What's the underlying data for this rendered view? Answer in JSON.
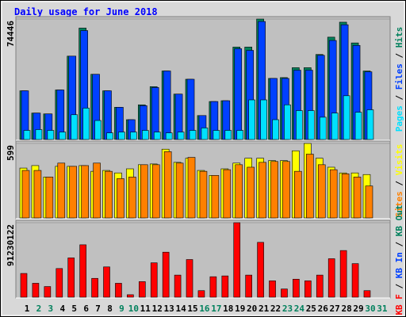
{
  "chart_data": [
    {
      "type": "bar",
      "title": "Daily usage for June 2018",
      "ylim": [
        0,
        74446
      ],
      "yticks": [
        74446
      ],
      "legend_separator": " / ",
      "series": [
        {
          "name": "Hits",
          "color": "#00805c",
          "values": [
            30090,
            16320,
            15810,
            30600,
            51510,
            68850,
            40290,
            30090,
            19890,
            12240,
            21420,
            32640,
            42330,
            28050,
            37230,
            14790,
            23460,
            23970,
            57120,
            57120,
            74446,
            37740,
            38250,
            44370,
            44370,
            52530,
            63240,
            72500,
            59670,
            42330,
            null
          ]
        },
        {
          "name": "Files",
          "color": "#0040ff",
          "values": [
            30090,
            16320,
            15810,
            30600,
            51510,
            67320,
            40290,
            30090,
            19890,
            12240,
            20910,
            32130,
            42330,
            28050,
            37230,
            14790,
            23460,
            23970,
            56100,
            55080,
            72930,
            37740,
            37740,
            42840,
            42840,
            52020,
            61200,
            70920,
            58140,
            41820,
            null
          ]
        },
        {
          "name": "Pages",
          "color": "#00e0ff",
          "values": [
            5610,
            6120,
            5610,
            4590,
            15300,
            19380,
            11730,
            4080,
            4590,
            4590,
            5610,
            4590,
            4080,
            4590,
            5610,
            7140,
            5610,
            5610,
            5610,
            24480,
            24480,
            12240,
            21420,
            17850,
            17850,
            13770,
            16320,
            27030,
            16830,
            18360,
            null
          ]
        }
      ]
    },
    {
      "type": "bar",
      "ylim": [
        0,
        599
      ],
      "yticks": [
        599
      ],
      "legend_separator": " / ",
      "series": [
        {
          "name": "Visits",
          "color": "#ffff00",
          "values": [
            401,
            421,
            329,
            415,
            415,
            421,
            375,
            382,
            362,
            395,
            428,
            434,
            553,
            447,
            480,
            382,
            342,
            395,
            441,
            480,
            480,
            461,
            461,
            540,
            599,
            480,
            408,
            362,
            362,
            349,
            null
          ]
        },
        {
          "name": "Sites",
          "color": "#ff8000",
          "values": [
            382,
            382,
            329,
            441,
            415,
            421,
            441,
            375,
            316,
            329,
            428,
            428,
            533,
            441,
            487,
            375,
            342,
            388,
            428,
            408,
            447,
            454,
            454,
            375,
            513,
            428,
            388,
            355,
            329,
            257,
            null
          ]
        }
      ]
    },
    {
      "type": "bar",
      "ylim": [
        0,
        91230122
      ],
      "yticks": [
        91230122
      ],
      "legend_separator": " / ",
      "categories": [
        "1",
        "2",
        "3",
        "4",
        "5",
        "6",
        "7",
        "8",
        "9",
        "10",
        "11",
        "12",
        "13",
        "14",
        "15",
        "16",
        "17",
        "18",
        "19",
        "20",
        "21",
        "22",
        "23",
        "24",
        "25",
        "26",
        "27",
        "28",
        "29",
        "30",
        "31"
      ],
      "category_colors": [
        "#000000",
        "#00805c",
        "#00805c",
        "#000000",
        "#000000",
        "#000000",
        "#000000",
        "#000000",
        "#00805c",
        "#00805c",
        "#000000",
        "#000000",
        "#000000",
        "#000000",
        "#000000",
        "#00805c",
        "#00805c",
        "#000000",
        "#000000",
        "#000000",
        "#000000",
        "#000000",
        "#00805c",
        "#00805c",
        "#000000",
        "#000000",
        "#000000",
        "#000000",
        "#000000",
        "#00805c",
        "#00805c"
      ],
      "series": [
        {
          "name": "KB F",
          "color": "#ff0000",
          "values": [
            29073000,
            17043000,
            13033000,
            35089000,
            48121000,
            64162000,
            23058000,
            37094000,
            17043000,
            3008000,
            19048000,
            42106000,
            55139000,
            27068000,
            46116000,
            8020000,
            25063000,
            26066000,
            91230122,
            27068000,
            67169000,
            20051000,
            10025000,
            22056000,
            20051000,
            27068000,
            47119000,
            57144000,
            41104000,
            8020000,
            null
          ]
        }
      ],
      "extra_legend": [
        {
          "name": "KB In",
          "color": "#0040ff"
        },
        {
          "name": "KB Out",
          "color": "#00805c"
        }
      ]
    }
  ]
}
